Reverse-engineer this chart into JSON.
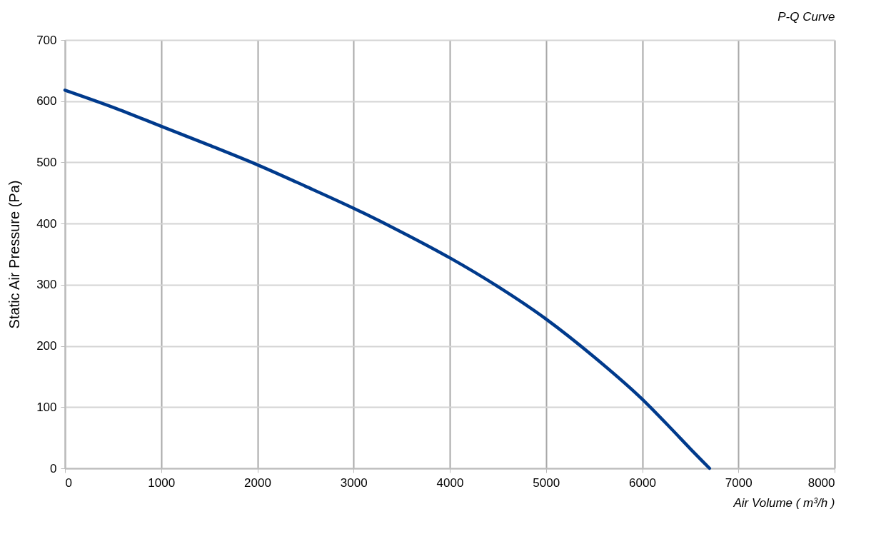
{
  "chart_data": {
    "type": "line",
    "title": "P-Q Curve",
    "xlabel": "Air Volume ( m³/h )",
    "ylabel": "Static Air Pressure  (Pa)",
    "x": [
      0,
      500,
      1000,
      1500,
      2000,
      2500,
      3000,
      3500,
      4000,
      4500,
      5000,
      5500,
      6000,
      6300,
      6500,
      6700
    ],
    "series": [
      {
        "color": "#003a8c",
        "values": [
          618,
          590,
          559,
          528,
          496,
          461,
          425,
          386,
          344,
          297,
          244,
          182,
          113,
          65,
          32,
          0
        ]
      }
    ],
    "xlim": [
      0,
      8000
    ],
    "xticks": [
      0,
      1000,
      2000,
      3000,
      4000,
      5000,
      6000,
      7000,
      8000
    ],
    "ylim": [
      0,
      700
    ],
    "yticks": [
      0,
      100,
      200,
      300,
      400,
      500,
      600,
      700
    ],
    "grid": true,
    "marker": "none",
    "line_style": "solid"
  }
}
